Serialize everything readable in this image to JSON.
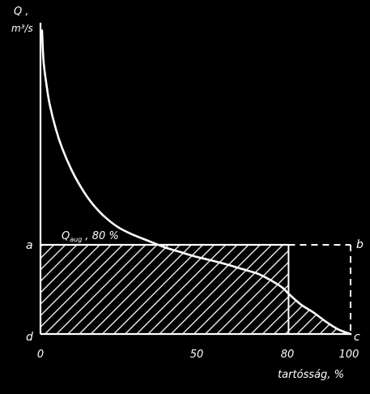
{
  "chart_data": {
    "type": "line",
    "y_axis_label": {
      "main": "Q ,",
      "unit": "m³/s"
    },
    "x_axis_label": "tartósság, %",
    "x_ticks": [
      "0",
      "50",
      "80",
      "100"
    ],
    "xlim": [
      0,
      100
    ],
    "ylim": [
      0,
      100
    ],
    "series": [
      {
        "x": [
          0.5,
          1,
          2,
          3,
          5,
          7,
          10,
          13,
          16,
          20,
          25,
          30,
          35,
          40,
          45,
          50,
          55,
          60,
          65,
          70,
          74,
          78,
          80,
          84,
          88,
          92,
          96,
          100
        ],
        "y": [
          98,
          88,
          80,
          74,
          66,
          60,
          53,
          47.5,
          43,
          38.5,
          34.5,
          32,
          30,
          28,
          26.5,
          25,
          23.8,
          22.5,
          21,
          19.5,
          17.5,
          15,
          13,
          9.5,
          7,
          4,
          1.5,
          0
        ]
      }
    ],
    "reference_level": {
      "label": "Q",
      "label_sub": "aug",
      "label_suffix": " , 80 %",
      "x": 80
    },
    "shaded_region": "hatched rectangle from 0 to 100 % under the reference level, plus the area under the curve between 80 and 100 %",
    "corner_labels": {
      "a": "a",
      "b": "b",
      "c": "c",
      "d": "d"
    },
    "line_color": "#ffffff",
    "background": "#000000"
  }
}
